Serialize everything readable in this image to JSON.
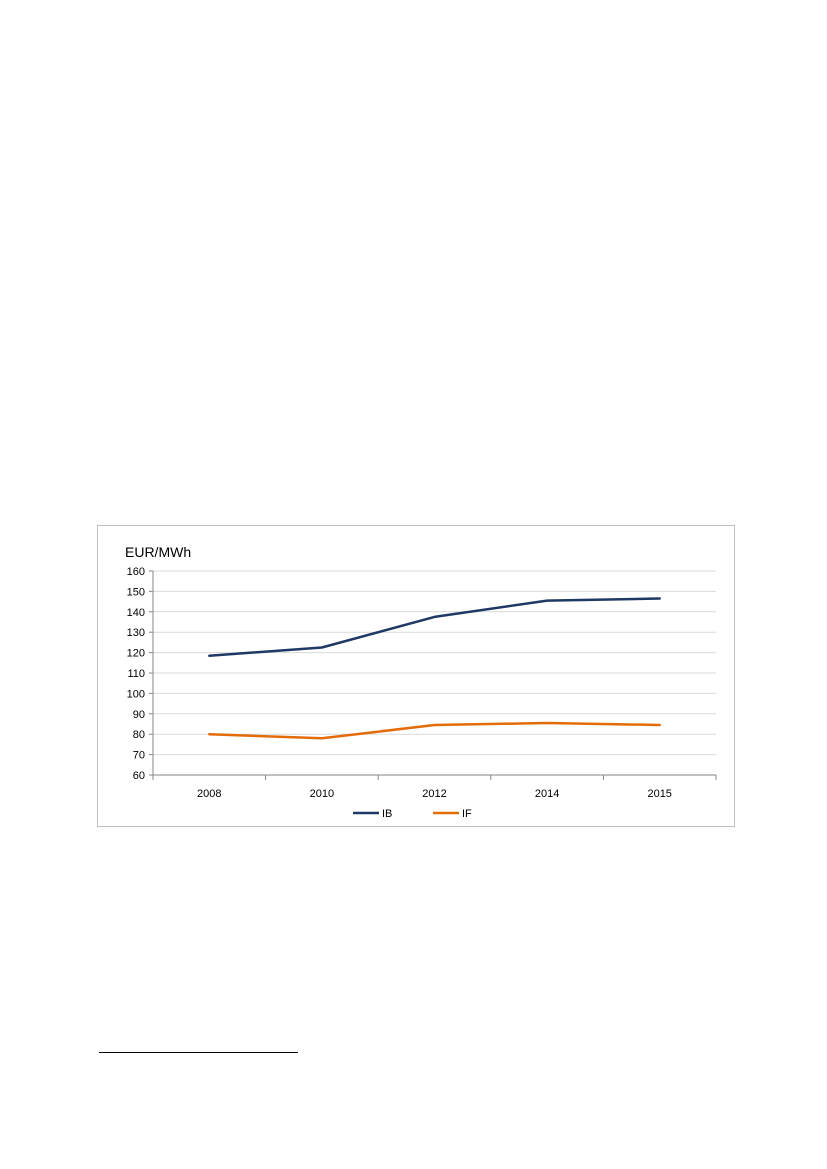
{
  "chart_data": {
    "type": "line",
    "ylabel": "EUR/MWh",
    "categories": [
      "2008",
      "2010",
      "2012",
      "2014",
      "2015"
    ],
    "ylim": [
      60,
      160
    ],
    "y_ticks": [
      "60",
      "70",
      "80",
      "90",
      "100",
      "110",
      "120",
      "130",
      "140",
      "150",
      "160"
    ],
    "grid": true,
    "legend_position": "bottom",
    "series": [
      {
        "name": "IB",
        "color": "#1f3864",
        "values": [
          118.5,
          122.5,
          137.5,
          145.5,
          146.5
        ]
      },
      {
        "name": "IF",
        "color": "#e36c09",
        "values": [
          80,
          78,
          84.5,
          85.5,
          84.5
        ]
      }
    ]
  }
}
